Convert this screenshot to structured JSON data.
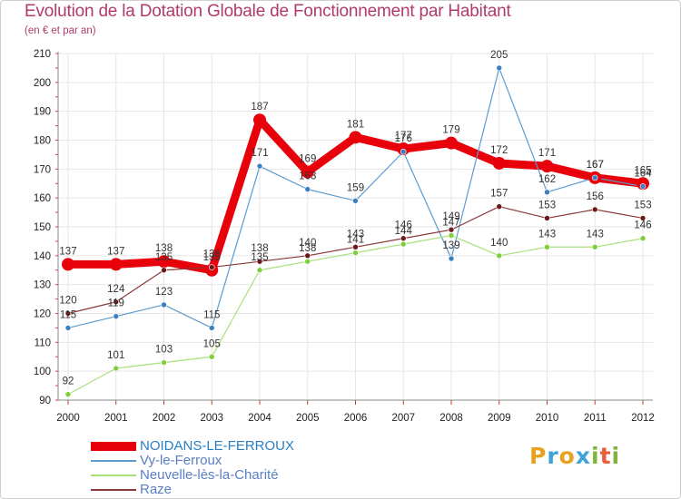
{
  "header": {
    "title": "Evolution de la Dotation Globale de Fonctionnement par Habitant",
    "subtitle": "(en € et par an)"
  },
  "brand": {
    "letters": [
      "P",
      "r",
      "o",
      "x",
      "i",
      "t",
      "i"
    ],
    "colors": [
      "#e8a11e",
      "#3fa3d7",
      "#e8a11e",
      "#3fa3d7",
      "#7fb33a",
      "#e85d3a",
      "#7fb33a"
    ]
  },
  "chart_data": {
    "type": "line",
    "title": "Evolution de la Dotation Globale de Fonctionnement par Habitant",
    "subtitle": "(en € et par an)",
    "categories": [
      "2000",
      "2001",
      "2002",
      "2003",
      "2004",
      "2005",
      "2006",
      "2007",
      "2008",
      "2009",
      "2010",
      "2011",
      "2012"
    ],
    "ylim": [
      90,
      210
    ],
    "yticks": [
      90,
      100,
      110,
      120,
      130,
      140,
      150,
      160,
      170,
      180,
      190,
      200,
      210
    ],
    "grid": true,
    "legend_position": "bottom-left",
    "series": [
      {
        "name": "NOIDANS-LE-FERROUX",
        "color": "#e8000b",
        "marker": "#e8000b",
        "width": 9,
        "values": [
          137,
          137,
          138,
          135,
          187,
          169,
          181,
          177,
          179,
          172,
          171,
          167,
          165
        ]
      },
      {
        "name": "Vy-le-Ferroux",
        "color": "#5b9bd0",
        "marker": "#3a7fc0",
        "width": 1.2,
        "values": [
          115,
          119,
          123,
          115,
          171,
          163,
          159,
          176,
          139,
          205,
          162,
          167,
          164
        ]
      },
      {
        "name": "Neuvelle-lès-la-Charité",
        "color": "#a8e07a",
        "marker": "#7fcf3a",
        "width": 1.2,
        "values": [
          92,
          101,
          103,
          105,
          135,
          138,
          141,
          144,
          147,
          140,
          143,
          143,
          146
        ]
      },
      {
        "name": "Raze",
        "color": "#8a3838",
        "marker": "#6a1a1a",
        "width": 1.2,
        "values": [
          120,
          124,
          135,
          136,
          138,
          140,
          143,
          146,
          149,
          157,
          153,
          156,
          153
        ]
      }
    ]
  }
}
